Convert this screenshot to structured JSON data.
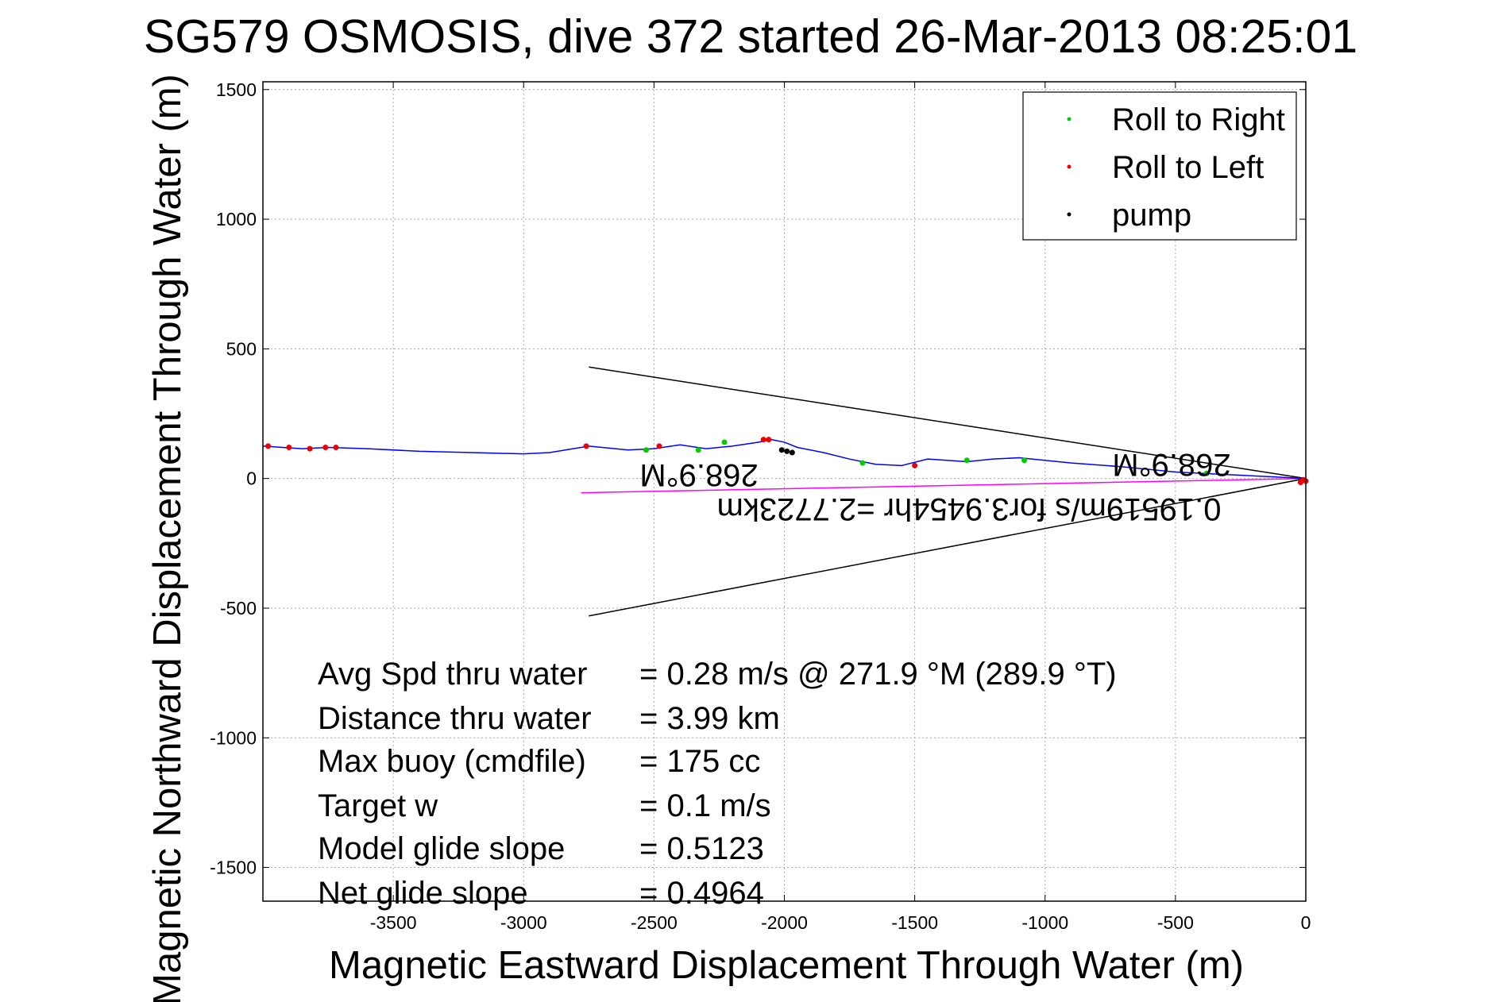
{
  "chart_data": {
    "type": "line",
    "title": "SG579 OSMOSIS, dive 372 started 26-Mar-2013 08:25:01",
    "xlabel": "Magnetic Eastward Displacement Through Water (m)",
    "ylabel": "Magnetic Northward Displacement Through Water (m)",
    "xlim": [
      -4000,
      0
    ],
    "ylim": [
      -1630,
      1530
    ],
    "xticks": [
      -3500,
      -3000,
      -2500,
      -2000,
      -1500,
      -1000,
      -500,
      0
    ],
    "yticks": [
      -1500,
      -1000,
      -500,
      0,
      500,
      1000,
      1500
    ],
    "grid": true,
    "legend_position": "top-right",
    "legend": [
      {
        "label": "Roll to Right",
        "color": "#00cc00"
      },
      {
        "label": "Roll to Left",
        "color": "#ee0000"
      },
      {
        "label": "pump",
        "color": "#000000"
      }
    ],
    "series": [
      {
        "name": "track",
        "color": "#0000ff",
        "x": [
          0,
          -100,
          -300,
          -500,
          -700,
          -900,
          -1100,
          -1200,
          -1300,
          -1450,
          -1550,
          -1650,
          -1750,
          -1850,
          -1950,
          -2000,
          -2050,
          -2100,
          -2200,
          -2300,
          -2400,
          -2500,
          -2600,
          -2750,
          -2900,
          -3000,
          -3200,
          -3400,
          -3600,
          -3750,
          -3850,
          -4000
        ],
        "y": [
          0,
          5,
          15,
          25,
          45,
          60,
          80,
          75,
          65,
          75,
          50,
          55,
          75,
          100,
          120,
          140,
          150,
          140,
          125,
          115,
          130,
          115,
          110,
          125,
          100,
          95,
          100,
          105,
          115,
          120,
          115,
          125
        ]
      }
    ],
    "markers": {
      "roll_right": {
        "x": [
          -380,
          -1080,
          -1300,
          -1700,
          -2230,
          -2330,
          -2530
        ],
        "y": [
          20,
          70,
          70,
          60,
          140,
          110,
          110
        ]
      },
      "roll_left": {
        "x": [
          0,
          -10,
          -20,
          -1500,
          -2080,
          -2060,
          -2480,
          -2760,
          -3720,
          -3760,
          -3820,
          -3900,
          -3980
        ],
        "y": [
          -10,
          -5,
          -15,
          50,
          150,
          150,
          125,
          125,
          120,
          120,
          115,
          120,
          125
        ]
      },
      "pump": {
        "x": [
          -1970,
          -1990,
          -2010
        ],
        "y": [
          100,
          105,
          110
        ]
      }
    },
    "reference_lines": [
      {
        "name": "heading-fan-upper",
        "color": "#000000",
        "x": [
          0,
          -2750
        ],
        "y": [
          0,
          430
        ]
      },
      {
        "name": "heading-fan-lower",
        "color": "#000000",
        "x": [
          0,
          -2750
        ],
        "y": [
          0,
          -530
        ]
      },
      {
        "name": "heading-vector",
        "color": "#ff00ff",
        "x": [
          0,
          -2780
        ],
        "y": [
          0,
          -55
        ]
      }
    ],
    "annotations": {
      "heading_label_1": "268.9°M",
      "heading_label_2": "268.9°M",
      "speed_label": "0.19519m/s for3.9454hr =2.7723km",
      "stats": [
        {
          "label": "Avg Spd thru water",
          "value": "=  0.28 m/s @ 271.9 °M (289.9 °T)"
        },
        {
          "label": "Distance thru water",
          "value": "=  3.99 km"
        },
        {
          "label": "Max buoy (cmdfile)",
          "value": "= 175 cc"
        },
        {
          "label": "Target w",
          "value": "= 0.1 m/s"
        },
        {
          "label": "Model glide slope",
          "value": "= 0.5123"
        },
        {
          "label": "Net glide slope",
          "value": "= 0.4964"
        }
      ]
    }
  }
}
